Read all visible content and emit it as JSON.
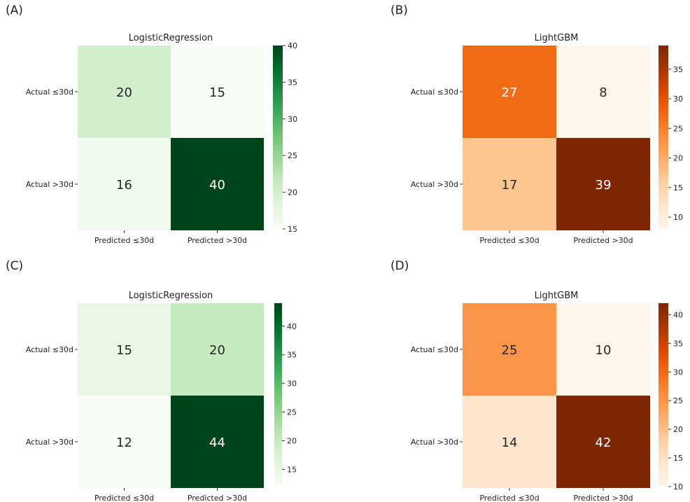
{
  "chart_data": [
    {
      "panel": "(A)",
      "type": "heatmap",
      "title": "LogisticRegression",
      "rows": [
        "Actual ≤30d",
        "Actual >30d"
      ],
      "cols": [
        "Predicted ≤30d",
        "Predicted >30d"
      ],
      "values": [
        [
          20,
          15
        ],
        [
          16,
          40
        ]
      ],
      "colormap": "greens",
      "vmin": 15,
      "vmax": 40,
      "colorbar_ticks": [
        15,
        20,
        25,
        30,
        35,
        40
      ]
    },
    {
      "panel": "(B)",
      "type": "heatmap",
      "title": "LightGBM",
      "rows": [
        "Actual ≤30d",
        "Actual >30d"
      ],
      "cols": [
        "Predicted ≤30d",
        "Predicted >30d"
      ],
      "values": [
        [
          27,
          8
        ],
        [
          17,
          39
        ]
      ],
      "colormap": "oranges",
      "vmin": 8,
      "vmax": 39,
      "colorbar_ticks": [
        10,
        15,
        20,
        25,
        30,
        35
      ]
    },
    {
      "panel": "(C)",
      "type": "heatmap",
      "title": "LogisticRegression",
      "rows": [
        "Actual ≤30d",
        "Actual >30d"
      ],
      "cols": [
        "Predicted ≤30d",
        "Predicted >30d"
      ],
      "values": [
        [
          15,
          20
        ],
        [
          12,
          44
        ]
      ],
      "colormap": "greens",
      "vmin": 12,
      "vmax": 44,
      "colorbar_ticks": [
        15,
        20,
        25,
        30,
        35,
        40
      ]
    },
    {
      "panel": "(D)",
      "type": "heatmap",
      "title": "LightGBM",
      "rows": [
        "Actual ≤30d",
        "Actual >30d"
      ],
      "cols": [
        "Predicted ≤30d",
        "Predicted >30d"
      ],
      "values": [
        [
          25,
          10
        ],
        [
          14,
          42
        ]
      ],
      "colormap": "oranges",
      "vmin": 10,
      "vmax": 42,
      "colorbar_ticks": [
        10,
        15,
        20,
        25,
        30,
        35,
        40
      ]
    }
  ]
}
